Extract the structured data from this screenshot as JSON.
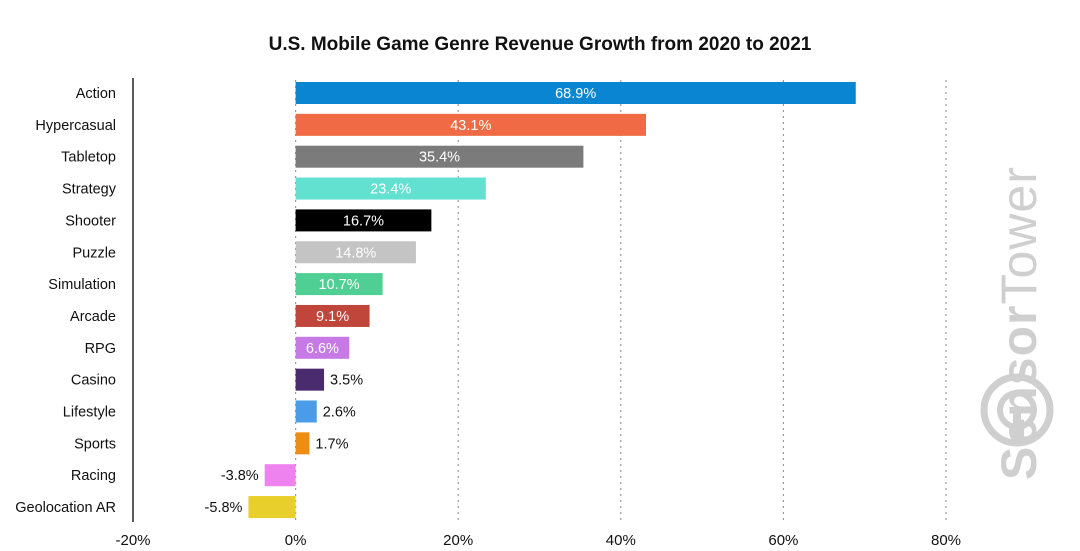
{
  "chart_data": {
    "type": "bar",
    "orientation": "horizontal",
    "title": "U.S. Mobile Game Genre Revenue Growth from 2020 to 2021",
    "categories": [
      "Action",
      "Hypercasual",
      "Tabletop",
      "Strategy",
      "Shooter",
      "Puzzle",
      "Simulation",
      "Arcade",
      "RPG",
      "Casino",
      "Lifestyle",
      "Sports",
      "Racing",
      "Geolocation AR"
    ],
    "values": [
      68.9,
      43.1,
      35.4,
      23.4,
      16.7,
      14.8,
      10.7,
      9.1,
      6.6,
      3.5,
      2.6,
      1.7,
      -3.8,
      -5.8
    ],
    "value_labels": [
      "68.9%",
      "43.1%",
      "35.4%",
      "23.4%",
      "16.7%",
      "14.8%",
      "10.7%",
      "9.1%",
      "6.6%",
      "3.5%",
      "2.6%",
      "1.7%",
      "-3.8%",
      "-5.8%"
    ],
    "colors": [
      "#0a85d1",
      "#f06b45",
      "#7b7b7b",
      "#62e0d0",
      "#000000",
      "#c4c4c4",
      "#4fcf93",
      "#c0453a",
      "#c77ae6",
      "#4a2b6e",
      "#4a9be8",
      "#ef8c12",
      "#ee82ee",
      "#e8cf2b"
    ],
    "xlim": [
      -20,
      80
    ],
    "xticks": [
      -20,
      0,
      20,
      40,
      60,
      80
    ],
    "xtick_labels": [
      "-20%",
      "0%",
      "20%",
      "40%",
      "60%",
      "80%"
    ],
    "grid": "vertical-dotted",
    "xlabel": "",
    "ylabel": ""
  },
  "watermark": {
    "part1": "Sensor",
    "part2": "Tower",
    "icon": "sensor-tower-logo-icon"
  }
}
